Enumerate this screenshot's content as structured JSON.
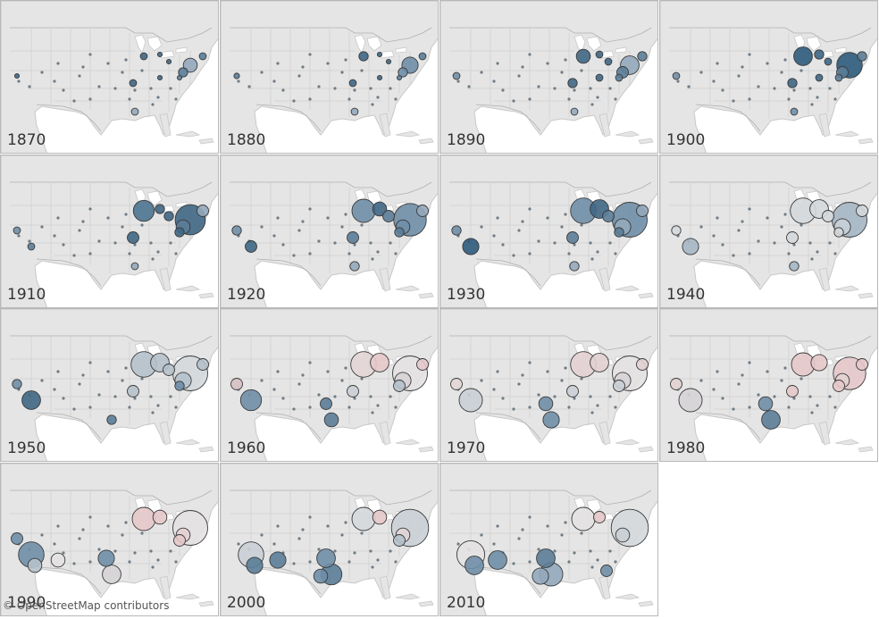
{
  "panels": [
    {
      "year": "1870",
      "bubbles": [
        {
          "city": "new-york",
          "size": 3,
          "color": "#93a9bb"
        },
        {
          "city": "philadelphia",
          "size": 2,
          "color": "#5b7d98"
        },
        {
          "city": "boston",
          "size": 1.5,
          "color": "#5b7d98"
        },
        {
          "city": "chicago",
          "size": 1.5,
          "color": "#3f6684"
        },
        {
          "city": "detroit",
          "size": 1,
          "color": "#3f6684"
        },
        {
          "city": "cleveland",
          "size": 1,
          "color": "#3f6684"
        },
        {
          "city": "st-louis",
          "size": 1.5,
          "color": "#3f6684"
        },
        {
          "city": "new-orleans",
          "size": 1.5,
          "color": "#93a9bb"
        },
        {
          "city": "cincinnati",
          "size": 1,
          "color": "#3f6684"
        },
        {
          "city": "san-francisco",
          "size": 1,
          "color": "#3f6684"
        },
        {
          "city": "baltimore",
          "size": 1,
          "color": "#5b7d98"
        }
      ]
    },
    {
      "year": "1880",
      "bubbles": [
        {
          "city": "new-york",
          "size": 3.5,
          "color": "#6f8ea7"
        },
        {
          "city": "philadelphia",
          "size": 2,
          "color": "#6f8ea7"
        },
        {
          "city": "chicago",
          "size": 2,
          "color": "#3f6684"
        },
        {
          "city": "boston",
          "size": 1.5,
          "color": "#5b7d98"
        },
        {
          "city": "st-louis",
          "size": 1.5,
          "color": "#3f6684"
        },
        {
          "city": "new-orleans",
          "size": 1.5,
          "color": "#93a9bb"
        },
        {
          "city": "detroit",
          "size": 1,
          "color": "#3f6684"
        },
        {
          "city": "cleveland",
          "size": 1,
          "color": "#3f6684"
        },
        {
          "city": "cincinnati",
          "size": 1,
          "color": "#3f6684"
        },
        {
          "city": "san-francisco",
          "size": 1.2,
          "color": "#5b7d98"
        },
        {
          "city": "baltimore",
          "size": 1,
          "color": "#5b7d98"
        }
      ]
    },
    {
      "year": "1890",
      "bubbles": [
        {
          "city": "new-york",
          "size": 4,
          "color": "#93a9bb"
        },
        {
          "city": "philadelphia",
          "size": 2.5,
          "color": "#5b7d98"
        },
        {
          "city": "chicago",
          "size": 3,
          "color": "#3f6684"
        },
        {
          "city": "boston",
          "size": 2,
          "color": "#5b7d98"
        },
        {
          "city": "st-louis",
          "size": 2,
          "color": "#3f6684"
        },
        {
          "city": "new-orleans",
          "size": 1.5,
          "color": "#93a9bb"
        },
        {
          "city": "detroit",
          "size": 1.5,
          "color": "#3f6684"
        },
        {
          "city": "cleveland",
          "size": 1.5,
          "color": "#3f6684"
        },
        {
          "city": "cincinnati",
          "size": 1.5,
          "color": "#3f6684"
        },
        {
          "city": "san-francisco",
          "size": 1.5,
          "color": "#6f8ea7"
        },
        {
          "city": "baltimore",
          "size": 1.5,
          "color": "#5b7d98"
        }
      ]
    },
    {
      "year": "1900",
      "bubbles": [
        {
          "city": "new-york",
          "size": 5.5,
          "color": "#2e5a7c"
        },
        {
          "city": "philadelphia",
          "size": 2.5,
          "color": "#5b7d98"
        },
        {
          "city": "chicago",
          "size": 4,
          "color": "#2e5a7c"
        },
        {
          "city": "boston",
          "size": 2,
          "color": "#5b7d98"
        },
        {
          "city": "st-louis",
          "size": 2,
          "color": "#3f6684"
        },
        {
          "city": "new-orleans",
          "size": 1.5,
          "color": "#6f8ea7"
        },
        {
          "city": "detroit",
          "size": 2,
          "color": "#3f6684"
        },
        {
          "city": "cleveland",
          "size": 1.5,
          "color": "#3f6684"
        },
        {
          "city": "cincinnati",
          "size": 1.5,
          "color": "#3f6684"
        },
        {
          "city": "san-francisco",
          "size": 1.5,
          "color": "#6f8ea7"
        },
        {
          "city": "baltimore",
          "size": 1.5,
          "color": "#5b7d98"
        }
      ]
    },
    {
      "year": "1910",
      "bubbles": [
        {
          "city": "new-york",
          "size": 6.5,
          "color": "#3f6684"
        },
        {
          "city": "philadelphia",
          "size": 3,
          "color": "#5b7d98"
        },
        {
          "city": "chicago",
          "size": 4.5,
          "color": "#4d7391"
        },
        {
          "city": "boston",
          "size": 2.5,
          "color": "#93a9bb"
        },
        {
          "city": "st-louis",
          "size": 2.5,
          "color": "#3f6684"
        },
        {
          "city": "new-orleans",
          "size": 1.5,
          "color": "#93a9bb"
        },
        {
          "city": "detroit",
          "size": 2,
          "color": "#3f6684"
        },
        {
          "city": "cleveland",
          "size": 2,
          "color": "#3f6684"
        },
        {
          "city": "los-angeles",
          "size": 1.5,
          "color": "#5b7d98"
        },
        {
          "city": "san-francisco",
          "size": 1.5,
          "color": "#6f8ea7"
        },
        {
          "city": "baltimore",
          "size": 2,
          "color": "#3f6684"
        }
      ]
    },
    {
      "year": "1920",
      "bubbles": [
        {
          "city": "new-york",
          "size": 7,
          "color": "#6f8ea7"
        },
        {
          "city": "philadelphia",
          "size": 3,
          "color": "#6f8ea7"
        },
        {
          "city": "chicago",
          "size": 5,
          "color": "#6f8ea7"
        },
        {
          "city": "boston",
          "size": 2.5,
          "color": "#93a9bb"
        },
        {
          "city": "detroit",
          "size": 3,
          "color": "#3f6684"
        },
        {
          "city": "st-louis",
          "size": 2.5,
          "color": "#5b7d98"
        },
        {
          "city": "cleveland",
          "size": 2.5,
          "color": "#5b7d98"
        },
        {
          "city": "los-angeles",
          "size": 2.5,
          "color": "#3f6684"
        },
        {
          "city": "san-francisco",
          "size": 2,
          "color": "#6f8ea7"
        },
        {
          "city": "new-orleans",
          "size": 2,
          "color": "#93a9bb"
        },
        {
          "city": "baltimore",
          "size": 2,
          "color": "#5b7d98"
        }
      ]
    },
    {
      "year": "1930",
      "bubbles": [
        {
          "city": "new-york",
          "size": 7.5,
          "color": "#6f8ea7"
        },
        {
          "city": "philadelphia",
          "size": 3.5,
          "color": "#93a9bb"
        },
        {
          "city": "chicago",
          "size": 5.5,
          "color": "#6f8ea7"
        },
        {
          "city": "detroit",
          "size": 4,
          "color": "#3f6684"
        },
        {
          "city": "los-angeles",
          "size": 3.5,
          "color": "#2e5a7c"
        },
        {
          "city": "st-louis",
          "size": 2.5,
          "color": "#5b7d98"
        },
        {
          "city": "cleveland",
          "size": 2.5,
          "color": "#5b7d98"
        },
        {
          "city": "boston",
          "size": 2.5,
          "color": "#93a9bb"
        },
        {
          "city": "san-francisco",
          "size": 2,
          "color": "#6f8ea7"
        },
        {
          "city": "new-orleans",
          "size": 2,
          "color": "#93a9bb"
        },
        {
          "city": "baltimore",
          "size": 2,
          "color": "#5b7d98"
        }
      ]
    },
    {
      "year": "1940",
      "bubbles": [
        {
          "city": "new-york",
          "size": 7.5,
          "color": "#a5b6c4"
        },
        {
          "city": "philadelphia",
          "size": 3.5,
          "color": "#c8d0d6"
        },
        {
          "city": "chicago",
          "size": 5.5,
          "color": "#d4d8db"
        },
        {
          "city": "detroit",
          "size": 4,
          "color": "#d4d8db"
        },
        {
          "city": "los-angeles",
          "size": 3.5,
          "color": "#a5b6c4"
        },
        {
          "city": "st-louis",
          "size": 2.5,
          "color": "#d4d8db"
        },
        {
          "city": "cleveland",
          "size": 2.5,
          "color": "#d4d8db"
        },
        {
          "city": "boston",
          "size": 2.5,
          "color": "#d4d8db"
        },
        {
          "city": "san-francisco",
          "size": 2,
          "color": "#d4d8db"
        },
        {
          "city": "new-orleans",
          "size": 2,
          "color": "#a5b6c4"
        },
        {
          "city": "baltimore",
          "size": 2,
          "color": "#d4d8db"
        }
      ]
    },
    {
      "year": "1950",
      "bubbles": [
        {
          "city": "new-york",
          "size": 7.5,
          "color": "#d4d8db"
        },
        {
          "city": "philadelphia",
          "size": 3.5,
          "color": "#b5c1cb"
        },
        {
          "city": "chicago",
          "size": 5.5,
          "color": "#b5c1cb"
        },
        {
          "city": "detroit",
          "size": 4,
          "color": "#b5c1cb"
        },
        {
          "city": "los-angeles",
          "size": 4,
          "color": "#3f6684"
        },
        {
          "city": "st-louis",
          "size": 2.5,
          "color": "#b5c1cb"
        },
        {
          "city": "cleveland",
          "size": 2.5,
          "color": "#b5c1cb"
        },
        {
          "city": "boston",
          "size": 2.5,
          "color": "#b5c1cb"
        },
        {
          "city": "san-francisco",
          "size": 2,
          "color": "#6f8ea7"
        },
        {
          "city": "houston",
          "size": 2,
          "color": "#5b7d98"
        },
        {
          "city": "baltimore",
          "size": 2,
          "color": "#6f8ea7"
        }
      ]
    },
    {
      "year": "1960",
      "bubbles": [
        {
          "city": "new-york",
          "size": 7.5,
          "color": "#e3e1e2"
        },
        {
          "city": "philadelphia",
          "size": 3.5,
          "color": "#d6d3d6"
        },
        {
          "city": "chicago",
          "size": 5.5,
          "color": "#e2d5d6"
        },
        {
          "city": "detroit",
          "size": 4,
          "color": "#e6c8ca"
        },
        {
          "city": "los-angeles",
          "size": 4.5,
          "color": "#6f8ea7"
        },
        {
          "city": "houston",
          "size": 3,
          "color": "#5b7d98"
        },
        {
          "city": "dallas",
          "size": 2.5,
          "color": "#5b7d98"
        },
        {
          "city": "st-louis",
          "size": 2.5,
          "color": "#c9cfd5"
        },
        {
          "city": "san-francisco",
          "size": 2.5,
          "color": "#d6c0c3"
        },
        {
          "city": "boston",
          "size": 2.5,
          "color": "#e6c8ca"
        },
        {
          "city": "baltimore",
          "size": 2.5,
          "color": "#b5c1cb"
        }
      ]
    },
    {
      "year": "1970",
      "bubbles": [
        {
          "city": "new-york",
          "size": 7.5,
          "color": "#e3e1e2"
        },
        {
          "city": "philadelphia",
          "size": 3.5,
          "color": "#d6d3d6"
        },
        {
          "city": "chicago",
          "size": 5.5,
          "color": "#e2d0d2"
        },
        {
          "city": "detroit",
          "size": 4,
          "color": "#e2d0d2"
        },
        {
          "city": "los-angeles",
          "size": 5,
          "color": "#c9cfd5"
        },
        {
          "city": "houston",
          "size": 3.5,
          "color": "#6f8ea7"
        },
        {
          "city": "dallas",
          "size": 3,
          "color": "#6f8ea7"
        },
        {
          "city": "st-louis",
          "size": 2.5,
          "color": "#c9cfd5"
        },
        {
          "city": "san-francisco",
          "size": 2.5,
          "color": "#e2d5d6"
        },
        {
          "city": "boston",
          "size": 2.5,
          "color": "#e2d0d2"
        },
        {
          "city": "baltimore",
          "size": 2.5,
          "color": "#c9cfd5"
        }
      ]
    },
    {
      "year": "1980",
      "bubbles": [
        {
          "city": "new-york",
          "size": 7,
          "color": "#e6c8ca"
        },
        {
          "city": "philadelphia",
          "size": 3,
          "color": "#e2d0d2"
        },
        {
          "city": "chicago",
          "size": 5,
          "color": "#e6c8ca"
        },
        {
          "city": "detroit",
          "size": 3.5,
          "color": "#e6c8ca"
        },
        {
          "city": "los-angeles",
          "size": 5,
          "color": "#d6d3d6"
        },
        {
          "city": "houston",
          "size": 4,
          "color": "#5b7d98"
        },
        {
          "city": "dallas",
          "size": 3,
          "color": "#6f8ea7"
        },
        {
          "city": "st-louis",
          "size": 2.5,
          "color": "#e6c8ca"
        },
        {
          "city": "san-francisco",
          "size": 2.5,
          "color": "#e2d0d2"
        },
        {
          "city": "boston",
          "size": 2.5,
          "color": "#e6c8ca"
        },
        {
          "city": "baltimore",
          "size": 2.5,
          "color": "#e6c8ca"
        }
      ]
    },
    {
      "year": "1990",
      "bubbles": [
        {
          "city": "new-york",
          "size": 7.5,
          "color": "#e3e1e2"
        },
        {
          "city": "philadelphia",
          "size": 3,
          "color": "#e2d0d2"
        },
        {
          "city": "chicago",
          "size": 5,
          "color": "#e6c8ca"
        },
        {
          "city": "detroit",
          "size": 3,
          "color": "#e6c8ca"
        },
        {
          "city": "los-angeles",
          "size": 5.5,
          "color": "#6f8ea7"
        },
        {
          "city": "houston",
          "size": 4,
          "color": "#d6d3d6"
        },
        {
          "city": "dallas",
          "size": 3.5,
          "color": "#6f8ea7"
        },
        {
          "city": "san-diego",
          "size": 3,
          "color": "#b5c1cb"
        },
        {
          "city": "san-francisco",
          "size": 2.5,
          "color": "#6f8ea7"
        },
        {
          "city": "phoenix",
          "size": 3,
          "color": "#e3e1e2"
        },
        {
          "city": "baltimore",
          "size": 2.5,
          "color": "#e6c8ca"
        }
      ]
    },
    {
      "year": "2000",
      "bubbles": [
        {
          "city": "new-york",
          "size": 8,
          "color": "#c9cfd5"
        },
        {
          "city": "philadelphia",
          "size": 3,
          "color": "#e2d5d6"
        },
        {
          "city": "chicago",
          "size": 5,
          "color": "#d4d8db"
        },
        {
          "city": "detroit",
          "size": 3,
          "color": "#e6c8ca"
        },
        {
          "city": "los-angeles",
          "size": 5.5,
          "color": "#c9cfd5"
        },
        {
          "city": "houston",
          "size": 4.5,
          "color": "#5b7d98"
        },
        {
          "city": "dallas",
          "size": 4,
          "color": "#6f8ea7"
        },
        {
          "city": "san-diego",
          "size": 3.5,
          "color": "#5b7d98"
        },
        {
          "city": "phoenix",
          "size": 3.5,
          "color": "#5b7d98"
        },
        {
          "city": "san-antonio",
          "size": 3,
          "color": "#6f8ea7"
        },
        {
          "city": "baltimore",
          "size": 2.5,
          "color": "#b5c1cb"
        }
      ]
    },
    {
      "year": "2010",
      "bubbles": [
        {
          "city": "new-york",
          "size": 8,
          "color": "#d4d8db"
        },
        {
          "city": "philadelphia",
          "size": 3,
          "color": "#c9cfd5"
        },
        {
          "city": "chicago",
          "size": 5,
          "color": "#e3e1e2"
        },
        {
          "city": "detroit",
          "size": 2.5,
          "color": "#e6c8ca"
        },
        {
          "city": "los-angeles",
          "size": 6,
          "color": "#e3e1e2"
        },
        {
          "city": "houston",
          "size": 5,
          "color": "#93a9bb"
        },
        {
          "city": "dallas",
          "size": 4,
          "color": "#5b7d98"
        },
        {
          "city": "san-diego",
          "size": 4,
          "color": "#6f8ea7"
        },
        {
          "city": "phoenix",
          "size": 4,
          "color": "#6f8ea7"
        },
        {
          "city": "san-antonio",
          "size": 3.5,
          "color": "#93a9bb"
        },
        {
          "city": "jacksonville",
          "size": 2.5,
          "color": "#6f8ea7"
        }
      ]
    }
  ],
  "attribution": "© OpenStreetMap contributors",
  "colors": {
    "land": "#e5e5e5",
    "ocean": "#ffffff",
    "border": "#b8b8b8"
  }
}
